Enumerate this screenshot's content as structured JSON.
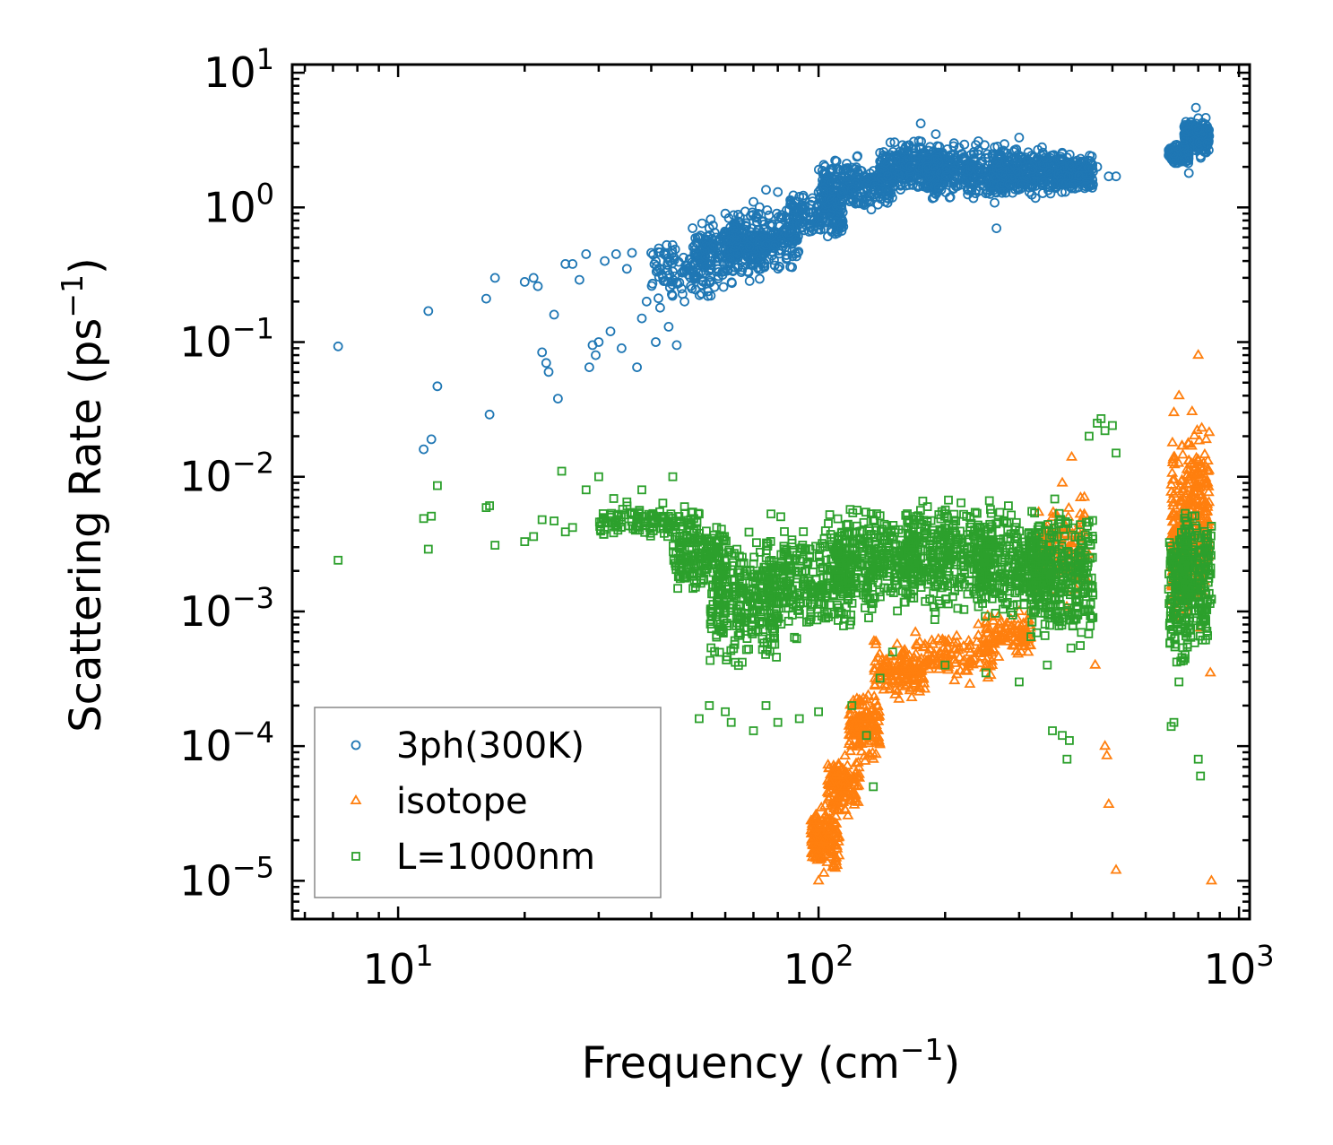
{
  "chart_data": {
    "type": "scatter",
    "xscale": "log",
    "yscale": "log",
    "xlim": [
      5.6,
      1060
    ],
    "ylim": [
      5.2e-06,
      11.5
    ],
    "xlabel": "Frequency (cm",
    "xlabel_sup": "−1",
    "xlabel_end": ")",
    "ylabel": "Scattering Rate (ps",
    "ylabel_sup": "−1",
    "ylabel_end": ")",
    "x_ticks": [
      {
        "value": 10,
        "base": "10",
        "exp": "1"
      },
      {
        "value": 100,
        "base": "10",
        "exp": "2"
      },
      {
        "value": 1000,
        "base": "10",
        "exp": "3"
      }
    ],
    "y_ticks": [
      {
        "value": 10,
        "base": "10",
        "exp": "1"
      },
      {
        "value": 1,
        "base": "10",
        "exp": "0"
      },
      {
        "value": 0.1,
        "base": "10",
        "exp": "−1"
      },
      {
        "value": 0.01,
        "base": "10",
        "exp": "−2"
      },
      {
        "value": 0.001,
        "base": "10",
        "exp": "−3"
      },
      {
        "value": 0.0001,
        "base": "10",
        "exp": "−4"
      },
      {
        "value": 1e-05,
        "base": "10",
        "exp": "−5"
      }
    ],
    "legend_position": "lower-left",
    "series": [
      {
        "name": "3ph(300K)",
        "marker": "circle",
        "color": "#1f77b4",
        "points": [
          [
            7.2,
            0.093
          ],
          [
            11.5,
            0.016
          ],
          [
            11.8,
            0.17
          ],
          [
            12.0,
            0.019
          ],
          [
            12.4,
            0.047
          ],
          [
            16.2,
            0.21
          ],
          [
            16.5,
            0.029
          ],
          [
            17.0,
            0.3
          ],
          [
            20.0,
            0.28
          ],
          [
            21.0,
            0.3
          ],
          [
            21.5,
            0.26
          ],
          [
            22.0,
            0.084
          ],
          [
            22.5,
            0.07
          ],
          [
            22.8,
            0.06
          ],
          [
            23.5,
            0.16
          ],
          [
            24.0,
            0.038
          ],
          [
            25.0,
            0.38
          ],
          [
            26.0,
            0.38
          ],
          [
            27.0,
            0.29
          ],
          [
            28.0,
            0.45
          ],
          [
            28.5,
            0.065
          ],
          [
            29.0,
            0.095
          ],
          [
            29.5,
            0.08
          ],
          [
            30.0,
            0.1
          ],
          [
            31.0,
            0.4
          ],
          [
            32.0,
            0.12
          ],
          [
            33.0,
            0.45
          ],
          [
            34.0,
            0.09
          ],
          [
            35.0,
            0.35
          ],
          [
            36.0,
            0.46
          ],
          [
            37.0,
            0.065
          ],
          [
            38.0,
            0.15
          ],
          [
            39.0,
            0.2
          ],
          [
            40.0,
            0.46
          ],
          [
            41.0,
            0.1
          ],
          [
            42.0,
            0.18
          ],
          [
            44.0,
            0.13
          ],
          [
            46.0,
            0.095
          ],
          [
            48.0,
            0.2
          ],
          [
            50.0,
            0.25
          ],
          [
            52.0,
            0.6
          ],
          [
            55.0,
            0.7
          ],
          [
            60.0,
            0.9
          ],
          [
            65.0,
            0.85
          ],
          [
            70.0,
            1.1
          ],
          [
            75.0,
            1.35
          ],
          [
            80.0,
            1.3
          ],
          [
            90.0,
            1.2
          ],
          [
            100.0,
            1.3
          ],
          [
            110.0,
            1.5
          ],
          [
            120.0,
            1.8
          ],
          [
            140.0,
            2.2
          ],
          [
            160.0,
            2.5
          ],
          [
            175.0,
            4.2
          ],
          [
            190.0,
            3.5
          ],
          [
            210.0,
            3.0
          ],
          [
            240.0,
            3.1
          ],
          [
            265.0,
            0.7
          ],
          [
            270.0,
            2.5
          ],
          [
            300.0,
            3.3
          ],
          [
            340.0,
            2.8
          ],
          [
            380.0,
            2.5
          ],
          [
            420.0,
            2.3
          ],
          [
            460.0,
            2.0
          ],
          [
            490.0,
            1.7
          ],
          [
            510.0,
            1.7
          ],
          [
            700.0,
            2.5
          ],
          [
            740.0,
            2.8
          ],
          [
            760.0,
            1.8
          ],
          [
            790.0,
            5.5
          ],
          [
            800.0,
            4.6
          ],
          [
            840.0,
            3.0
          ]
        ],
        "bands": [
          {
            "x": [
              40,
              60
            ],
            "y": [
              0.18,
              0.65
            ],
            "n": 130
          },
          {
            "x": [
              50,
              75
            ],
            "y": [
              0.25,
              0.95
            ],
            "n": 180
          },
          {
            "x": [
              60,
              90
            ],
            "y": [
              0.3,
              1.1
            ],
            "n": 240
          },
          {
            "x": [
              85,
              115
            ],
            "y": [
              0.5,
              1.4
            ],
            "n": 160
          },
          {
            "x": [
              100,
              150
            ],
            "y": [
              0.8,
              2.6
            ],
            "n": 260
          },
          {
            "x": [
              140,
              200
            ],
            "y": [
              1.1,
              3.6
            ],
            "n": 300
          },
          {
            "x": [
              180,
              280
            ],
            "y": [
              1.0,
              3.3
            ],
            "n": 340
          },
          {
            "x": [
              260,
              380
            ],
            "y": [
              1.1,
              3.1
            ],
            "n": 300
          },
          {
            "x": [
              370,
              450
            ],
            "y": [
              1.2,
              2.6
            ],
            "n": 200
          },
          {
            "x": [
              680,
              760
            ],
            "y": [
              2.0,
              3.1
            ],
            "n": 150
          },
          {
            "x": [
              740,
              850
            ],
            "y": [
              2.2,
              5.0
            ],
            "n": 180
          }
        ]
      },
      {
        "name": "isotope",
        "marker": "triangle",
        "color": "#ff7f0e",
        "points": [
          [
            100,
            1e-05
          ],
          [
            102,
            1.5e-05
          ],
          [
            105,
            2e-05
          ],
          [
            110,
            3e-05
          ],
          [
            115,
            5e-05
          ],
          [
            120,
            0.0001
          ],
          [
            130,
            0.0002
          ],
          [
            135,
            8e-05
          ],
          [
            140,
            0.00035
          ],
          [
            150,
            0.0003
          ],
          [
            170,
            0.0007
          ],
          [
            200,
            0.0006
          ],
          [
            240,
            0.0008
          ],
          [
            300,
            0.001
          ],
          [
            320,
            0.0015
          ],
          [
            360,
            0.005
          ],
          [
            380,
            0.009
          ],
          [
            400,
            0.014
          ],
          [
            420,
            0.007
          ],
          [
            455,
            0.0004
          ],
          [
            480,
            0.0001
          ],
          [
            485,
            8.5e-05
          ],
          [
            490,
            3.7e-05
          ],
          [
            510,
            1.2e-05
          ],
          [
            700,
            0.03
          ],
          [
            720,
            0.04
          ],
          [
            800,
            0.08
          ],
          [
            860,
            1e-05
          ],
          [
            855,
            0.00035
          ]
        ],
        "bands": [
          {
            "x": [
              96,
              112
            ],
            "y": [
              1e-05,
              4e-05
            ],
            "n": 160
          },
          {
            "x": [
              105,
              125
            ],
            "y": [
              2.5e-05,
              0.0001
            ],
            "n": 150
          },
          {
            "x": [
              118,
              140
            ],
            "y": [
              7e-05,
              0.0003
            ],
            "n": 140
          },
          {
            "x": [
              135,
              180
            ],
            "y": [
              0.0002,
              0.00065
            ],
            "n": 140
          },
          {
            "x": [
              170,
              260
            ],
            "y": [
              0.00028,
              0.00075
            ],
            "n": 130
          },
          {
            "x": [
              250,
              320
            ],
            "y": [
              0.0004,
              0.0011
            ],
            "n": 100
          },
          {
            "x": [
              330,
              440
            ],
            "y": [
              0.001,
              0.008
            ],
            "n": 120
          },
          {
            "x": [
              690,
              740
            ],
            "y": [
              0.0005,
              0.025
            ],
            "n": 120
          },
          {
            "x": [
              750,
              850
            ],
            "y": [
              0.0005,
              0.06
            ],
            "n": 200
          }
        ]
      },
      {
        "name": "L=1000nm",
        "marker": "square",
        "color": "#2ca02c",
        "points": [
          [
            7.2,
            0.0024
          ],
          [
            11.5,
            0.0049
          ],
          [
            11.8,
            0.0029
          ],
          [
            12.0,
            0.0051
          ],
          [
            12.4,
            0.0086
          ],
          [
            16.2,
            0.0059
          ],
          [
            16.5,
            0.0061
          ],
          [
            17.0,
            0.0031
          ],
          [
            20.0,
            0.0033
          ],
          [
            21.0,
            0.0036
          ],
          [
            22.0,
            0.0048
          ],
          [
            23.5,
            0.0047
          ],
          [
            24.5,
            0.011
          ],
          [
            25.0,
            0.0039
          ],
          [
            26.0,
            0.0042
          ],
          [
            28.0,
            0.008
          ],
          [
            30.0,
            0.01
          ],
          [
            32.0,
            0.005
          ],
          [
            35.0,
            0.0065
          ],
          [
            38.0,
            0.008
          ],
          [
            40.0,
            0.0045
          ],
          [
            45.0,
            0.01
          ],
          [
            48.0,
            0.006
          ],
          [
            52.0,
            0.00016
          ],
          [
            55.0,
            0.0002
          ],
          [
            60.0,
            0.00018
          ],
          [
            62.0,
            0.00015
          ],
          [
            70.0,
            0.00013
          ],
          [
            75.0,
            0.0002
          ],
          [
            80.0,
            0.00015
          ],
          [
            90.0,
            0.00016
          ],
          [
            100.0,
            0.00018
          ],
          [
            120.0,
            0.0002
          ],
          [
            130.0,
            0.00012
          ],
          [
            135.0,
            5e-05
          ],
          [
            140.0,
            0.00032
          ],
          [
            150.0,
            0.0005
          ],
          [
            200.0,
            0.0004
          ],
          [
            250.0,
            0.00035
          ],
          [
            300.0,
            0.0003
          ],
          [
            350.0,
            0.0004
          ],
          [
            360.0,
            0.00013
          ],
          [
            380.0,
            0.00012
          ],
          [
            390.0,
            8e-05
          ],
          [
            395.0,
            0.00011
          ],
          [
            440.0,
            0.02
          ],
          [
            460.0,
            0.025
          ],
          [
            470.0,
            0.027
          ],
          [
            480.0,
            0.022
          ],
          [
            500.0,
            0.024
          ],
          [
            510.0,
            0.015
          ],
          [
            690.0,
            0.00014
          ],
          [
            700.0,
            0.00015
          ],
          [
            720.0,
            0.0003
          ],
          [
            800.0,
            8e-05
          ],
          [
            810.0,
            6e-05
          ]
        ],
        "bands": [
          {
            "x": [
              30,
              52
            ],
            "y": [
              0.003,
              0.007
            ],
            "n": 130
          },
          {
            "x": [
              45,
              60
            ],
            "y": [
              0.0012,
              0.0055
            ],
            "n": 150
          },
          {
            "x": [
              55,
              80
            ],
            "y": [
              0.0003,
              0.005
            ],
            "n": 280
          },
          {
            "x": [
              75,
              120
            ],
            "y": [
              0.0005,
              0.006
            ],
            "n": 300
          },
          {
            "x": [
              110,
              170
            ],
            "y": [
              0.0008,
              0.007
            ],
            "n": 320
          },
          {
            "x": [
              160,
              260
            ],
            "y": [
              0.0008,
              0.009
            ],
            "n": 360
          },
          {
            "x": [
              240,
              360
            ],
            "y": [
              0.0007,
              0.007
            ],
            "n": 300
          },
          {
            "x": [
              320,
              450
            ],
            "y": [
              0.0004,
              0.008
            ],
            "n": 300
          },
          {
            "x": [
              680,
              760
            ],
            "y": [
              0.0003,
              0.007
            ],
            "n": 150
          },
          {
            "x": [
              740,
              860
            ],
            "y": [
              0.0004,
              0.008
            ],
            "n": 170
          }
        ]
      }
    ]
  }
}
